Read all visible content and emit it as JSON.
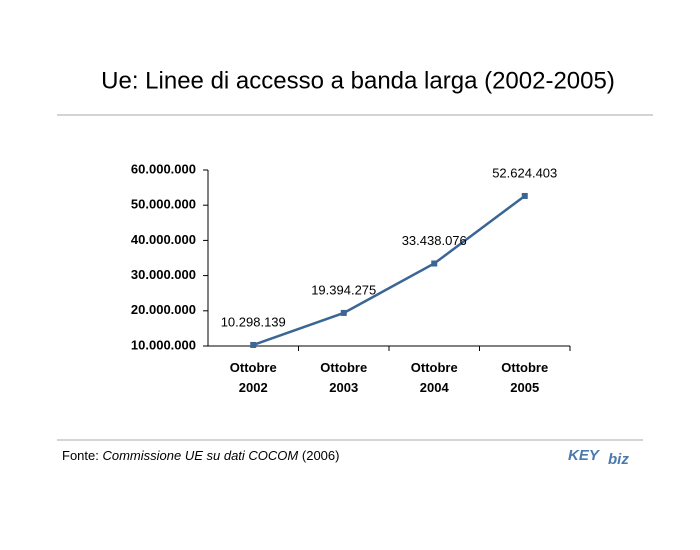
{
  "chart_data": {
    "type": "line",
    "title": "Ue: Linee di accesso a banda larga (2002-2005)",
    "categories": [
      "Ottobre 2002",
      "Ottobre 2003",
      "Ottobre 2004",
      "Ottobre 2005"
    ],
    "values": [
      10298139,
      19394275,
      33438076,
      52624403
    ],
    "value_labels": [
      "10.298.139",
      "19.394.275",
      "33.438.076",
      "52.624.403"
    ],
    "color": "#3a6594",
    "ylim": [
      10000000,
      60000000
    ],
    "yticks": [
      {
        "value": 10000000,
        "label": "10.000.000"
      },
      {
        "value": 20000000,
        "label": "20.000.000"
      },
      {
        "value": 30000000,
        "label": "30.000.000"
      },
      {
        "value": 40000000,
        "label": "40.000.000"
      },
      {
        "value": 50000000,
        "label": "50.000.000"
      },
      {
        "value": 60000000,
        "label": "60.000.000"
      }
    ],
    "source": {
      "prefix": "Fonte:",
      "work": "Commissione UE su dati COCOM",
      "year": "(2006)"
    },
    "logo": {
      "left": "KEY",
      "right": "biz"
    }
  }
}
